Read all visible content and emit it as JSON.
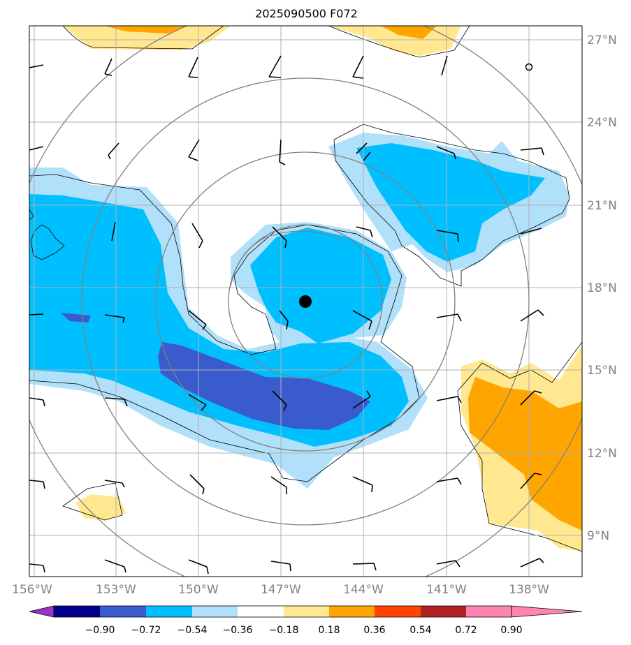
{
  "title": "2025090500 F072",
  "storm_center": {
    "lon": -146.2,
    "lat": 17.5
  },
  "map": {
    "lon_range": [
      -156.0,
      -136.0
    ],
    "lat_range": [
      7.5,
      27.5
    ],
    "lon_ticks": [
      "156°W",
      "153°W",
      "150°W",
      "147°W",
      "144°W",
      "141°W",
      "138°W"
    ],
    "lat_ticks": [
      "27°N",
      "24°N",
      "21°N",
      "18°N",
      "15°N",
      "12°N",
      "9°N"
    ]
  },
  "colorbar": {
    "labels": [
      "−0.90",
      "−0.72",
      "−0.54",
      "−0.36",
      "−0.18",
      "0.18",
      "0.36",
      "0.54",
      "0.72",
      "0.90"
    ],
    "colors": [
      "#9932cc",
      "#00008b",
      "#3a5bcc",
      "#00bfff",
      "#b0e0fa",
      "#ffffff",
      "#ffe88f",
      "#ffa500",
      "#ff4500",
      "#b22222",
      "#ff85b0"
    ]
  },
  "palette": {
    "grid": "#b0b0b0",
    "range_rings": "#808080",
    "contour": "#000000"
  }
}
